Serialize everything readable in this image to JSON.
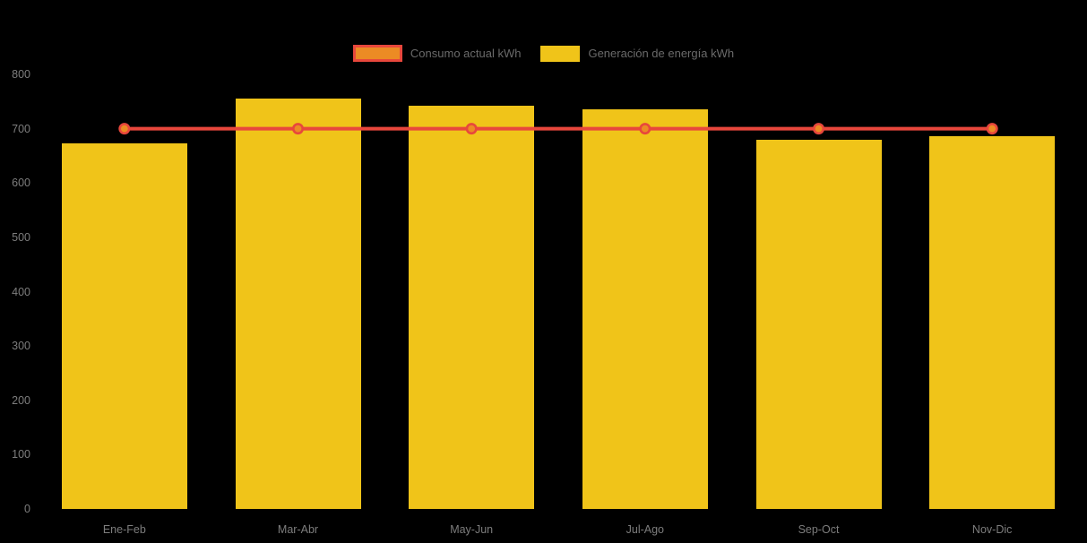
{
  "chart_data": {
    "type": "bar",
    "title": "",
    "categories": [
      "Ene-Feb",
      "Mar-Abr",
      "May-Jun",
      "Jul-Ago",
      "Sep-Oct",
      "Nov-Dic"
    ],
    "series": [
      {
        "name": "Consumo actual kWh",
        "type": "line",
        "values": [
          700,
          700,
          700,
          700,
          700,
          700
        ],
        "line_color": "#e8473c",
        "point_fill_color": "#ec8b24"
      },
      {
        "name": "Generación de energía kWh",
        "type": "bar",
        "values": [
          673,
          755,
          743,
          735,
          680,
          686
        ],
        "bar_color": "#f0c419"
      }
    ],
    "xlabel": "",
    "ylabel": "",
    "ylim": [
      0,
      800
    ],
    "ytick_step": 100,
    "ytick_labels": [
      "0",
      "100",
      "200",
      "300",
      "400",
      "500",
      "600",
      "700",
      "800"
    ],
    "grid": false,
    "legend_position": "top-center",
    "background_color": "#000000",
    "axis_text_color": "#7d7d7d",
    "legend_text_color": "#6a6a6a"
  }
}
